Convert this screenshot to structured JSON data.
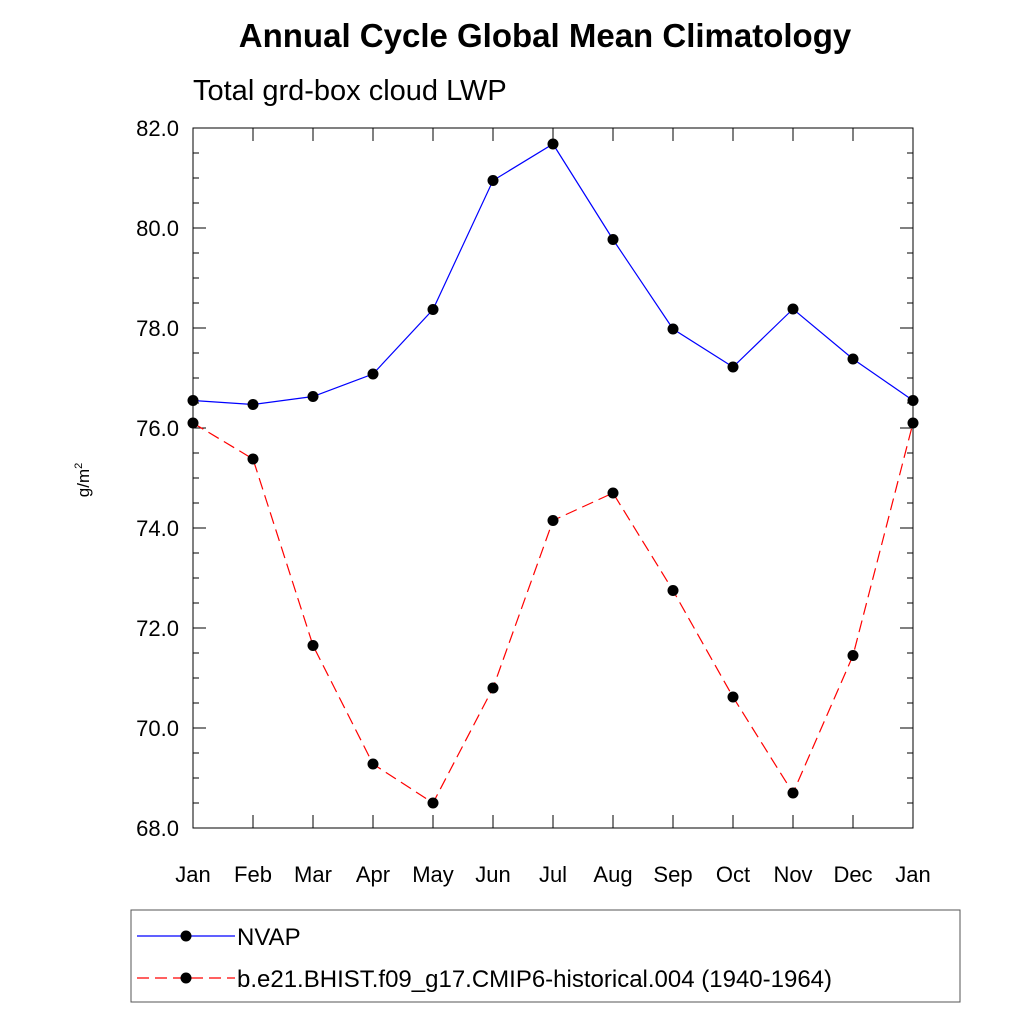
{
  "chart_data": {
    "type": "line",
    "title": "Annual Cycle Global Mean Climatology",
    "subtitle": "Total grd-box cloud LWP",
    "ylabel": "g/m",
    "ylabel_sup": "2",
    "xlabel": "",
    "categories": [
      "Jan",
      "Feb",
      "Mar",
      "Apr",
      "May",
      "Jun",
      "Jul",
      "Aug",
      "Sep",
      "Oct",
      "Nov",
      "Dec",
      "Jan"
    ],
    "ylim": [
      68.0,
      82.0
    ],
    "yticks": [
      "68.0",
      "70.0",
      "72.0",
      "74.0",
      "76.0",
      "78.0",
      "80.0",
      "82.0"
    ],
    "legend_position": "bottom",
    "series": [
      {
        "name": "NVAP",
        "color": "#0000ff",
        "dash": "solid",
        "marker": "circle",
        "values": [
          76.55,
          76.47,
          76.63,
          77.08,
          78.37,
          80.95,
          81.68,
          79.77,
          77.98,
          77.22,
          78.38,
          77.38,
          76.55
        ]
      },
      {
        "name": "b.e21.BHIST.f09_g17.CMIP6-historical.004 (1940-1964)",
        "color": "#ff0000",
        "dash": "dashed",
        "marker": "circle",
        "values": [
          76.1,
          75.38,
          71.65,
          69.28,
          68.5,
          70.8,
          74.15,
          74.7,
          72.75,
          70.62,
          68.7,
          71.45,
          76.1
        ]
      }
    ]
  }
}
